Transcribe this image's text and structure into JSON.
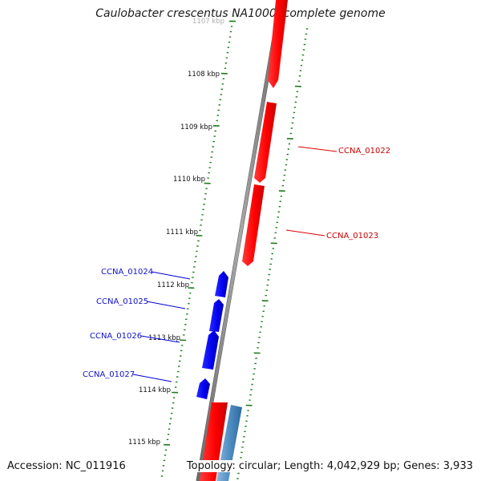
{
  "title": "Caulobacter crescentus NA1000, complete genome",
  "footer": {
    "accession": "Accession: NC_011916",
    "topology": "Topology: circular; Length: 4,042,929 bp; Genes: 3,933"
  },
  "colors": {
    "forward_gene": "#ff0000",
    "reverse_gene": "#0000ff",
    "other_feature": "#4f8fc4",
    "backbone": "#8a8a8a",
    "tick": "#1e7a1e",
    "label_red": "#cc0000",
    "label_blue": "#1010cc"
  },
  "ticks": {
    "major_labels": [
      "1107 kbp",
      "1108 kbp",
      "1109 kbp",
      "1110 kbp",
      "1111 kbp",
      "1112 kbp",
      "1113 kbp",
      "1114 kbp",
      "1115 kbp"
    ]
  },
  "genes": [
    {
      "name": "CCNA_01022",
      "strand": "forward"
    },
    {
      "name": "CCNA_01023",
      "strand": "forward"
    },
    {
      "name": "CCNA_01024",
      "strand": "reverse"
    },
    {
      "name": "CCNA_01025",
      "strand": "reverse"
    },
    {
      "name": "CCNA_01026",
      "strand": "reverse"
    },
    {
      "name": "CCNA_01027",
      "strand": "reverse"
    }
  ]
}
